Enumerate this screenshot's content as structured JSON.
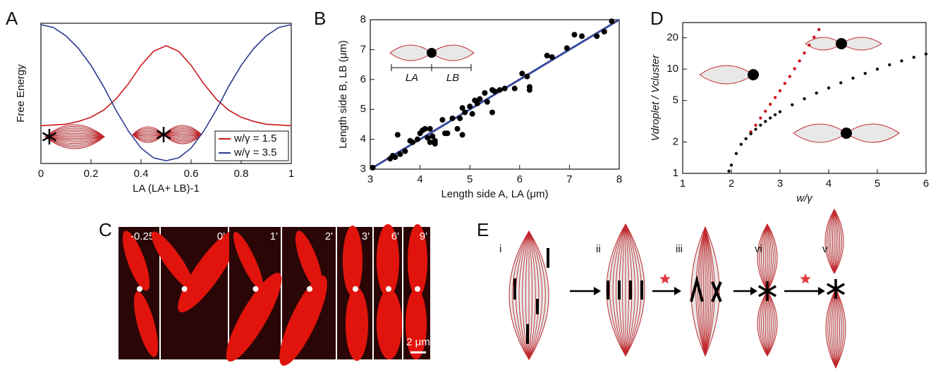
{
  "panel_labels": [
    "A",
    "B",
    "C",
    "D",
    "E"
  ],
  "chart_data": [
    {
      "type": "line",
      "y_label": "Free Energy",
      "x_label": "LA (LA+ LB)-1",
      "x": [
        0,
        0.05,
        0.1,
        0.15,
        0.2,
        0.25,
        0.3,
        0.35,
        0.4,
        0.45,
        0.5,
        0.55,
        0.6,
        0.65,
        0.7,
        0.75,
        0.8,
        0.85,
        0.9,
        0.95,
        1
      ],
      "xlim": [
        0,
        1
      ],
      "xticks": [
        0,
        0.2,
        0.4,
        0.6,
        0.8,
        1
      ],
      "ylim": [
        0,
        1
      ],
      "series": [
        {
          "name": "w/γ = 1.5",
          "color": "#c8161d",
          "values": [
            0.27,
            0.275,
            0.28,
            0.3,
            0.33,
            0.38,
            0.46,
            0.57,
            0.7,
            0.8,
            0.84,
            0.8,
            0.7,
            0.57,
            0.46,
            0.38,
            0.33,
            0.3,
            0.28,
            0.275,
            0.27
          ]
        },
        {
          "name": "w/γ = 3.5",
          "color": "#2b3a8f",
          "values": [
            0.99,
            0.97,
            0.91,
            0.82,
            0.7,
            0.55,
            0.38,
            0.23,
            0.11,
            0.04,
            0.02,
            0.04,
            0.11,
            0.23,
            0.38,
            0.55,
            0.7,
            0.82,
            0.91,
            0.97,
            0.99
          ]
        }
      ],
      "legend": "lower right"
    },
    {
      "type": "scatter",
      "x_label": "Length side A, LA (μm)",
      "y_label": "Length side B, LB (μm)",
      "annotations": [
        "LA",
        "LB"
      ],
      "xlim": [
        3,
        8
      ],
      "ylim": [
        3,
        8
      ],
      "xticks": [
        3,
        4,
        5,
        6,
        7,
        8
      ],
      "yticks": [
        3,
        4,
        5,
        6,
        7,
        8
      ],
      "series": [
        {
          "color": "#000000",
          "x": [
            3.05,
            3.4,
            3.45,
            3.5,
            3.55,
            3.6,
            3.7,
            3.8,
            3.85,
            3.95,
            4.0,
            4.05,
            4.1,
            4.15,
            4.2,
            4.2,
            4.25,
            4.3,
            4.3,
            4.45,
            4.5,
            4.55,
            4.65,
            4.75,
            4.8,
            4.85,
            4.85,
            4.9,
            5.0,
            5.05,
            5.1,
            5.15,
            5.2,
            5.3,
            5.35,
            5.45,
            5.45,
            5.5,
            5.6,
            5.7,
            5.9,
            6.05,
            6.15,
            6.2,
            6.2,
            6.55,
            6.65,
            6.95,
            7.1,
            7.25,
            7.55,
            7.7,
            7.85
          ],
          "values": [
            3.05,
            3.35,
            3.45,
            3.4,
            4.15,
            3.5,
            3.6,
            3.95,
            3.9,
            4.0,
            4.2,
            4.3,
            4.35,
            4.05,
            4.35,
            3.9,
            4.1,
            3.85,
            3.95,
            4.65,
            4.2,
            4.2,
            4.7,
            4.35,
            4.7,
            4.15,
            5.05,
            4.9,
            5.1,
            4.85,
            5.3,
            5.2,
            5.35,
            5.55,
            5.25,
            5.65,
            4.9,
            5.6,
            5.65,
            5.7,
            5.7,
            6.2,
            6.1,
            5.75,
            5.65,
            6.8,
            6.75,
            7.05,
            7.5,
            7.45,
            7.45,
            7.6,
            7.95
          ]
        }
      ],
      "fit": {
        "color": "#3a4a9c",
        "x": [
          3,
          8
        ],
        "values": [
          3,
          8
        ]
      }
    },
    {
      "type": "scatter",
      "x_label": "w/γ",
      "y_label": "Vdroplet / Vcluster",
      "log_y": true,
      "xlim": [
        1,
        6
      ],
      "ylim": [
        1,
        28
      ],
      "xticks": [
        1,
        2,
        3,
        4,
        5,
        6
      ],
      "yticks": [
        1,
        2,
        5,
        10,
        20
      ],
      "series": [
        {
          "color": "#d0141c",
          "x": [
            2.4,
            2.5,
            2.6,
            2.7,
            2.8,
            2.9,
            3.0,
            3.1,
            3.2,
            3.3,
            3.4,
            3.5,
            3.6,
            3.7,
            3.8
          ],
          "values": [
            2.5,
            2.9,
            3.4,
            3.95,
            4.6,
            5.35,
            6.2,
            7.3,
            8.5,
            10.1,
            12,
            14.3,
            17,
            20.3,
            24
          ]
        },
        {
          "color": "#111111",
          "x": [
            1.95,
            2.0,
            2.1,
            2.2,
            2.3,
            2.4,
            2.5,
            2.6,
            2.7,
            2.8,
            2.9,
            3.0,
            3.25,
            3.5,
            3.75,
            4.0,
            4.25,
            4.5,
            4.75,
            5.0,
            5.25,
            5.5,
            5.75,
            6.0
          ],
          "values": [
            1.05,
            1.2,
            1.55,
            1.9,
            2.15,
            2.4,
            2.65,
            2.9,
            3.15,
            3.4,
            3.65,
            3.9,
            4.55,
            5.2,
            5.9,
            6.6,
            7.4,
            8.2,
            9.1,
            10,
            11,
            12,
            13,
            14
          ]
        }
      ]
    }
  ],
  "image_series": {
    "times": [
      "-0.25'",
      "0'",
      "1'",
      "2'",
      "3'",
      "6'",
      "9'"
    ],
    "scale_bar": "2 μm"
  },
  "diagram": {
    "stages": [
      "i",
      "ii",
      "iii",
      "vi",
      "v"
    ]
  }
}
